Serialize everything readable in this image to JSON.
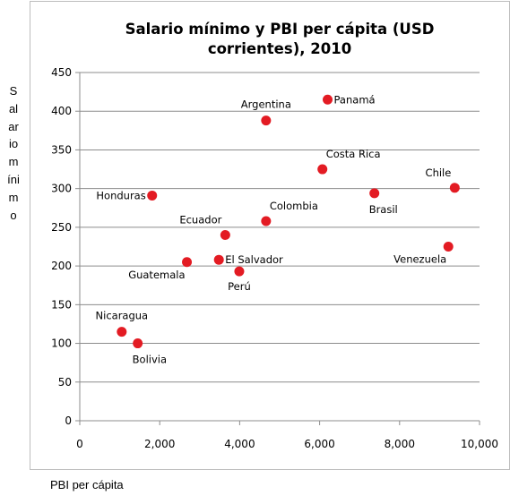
{
  "chart_data": {
    "type": "scatter",
    "title": "Salario mínimo y PBI per cápita (USD corrientes), 2010",
    "title_lines": [
      "Salario mínimo y PBI per cápita (USD",
      "corrientes), 2010"
    ],
    "xlabel": "PBI per cápita",
    "ylabel": "Salario mínimo",
    "xlim": [
      0,
      10000
    ],
    "ylim": [
      0,
      450
    ],
    "x_ticks": [
      0,
      2000,
      4000,
      6000,
      8000,
      10000
    ],
    "x_tick_labels": [
      "0",
      "2,000",
      "4,000",
      "6,000",
      "8,000",
      "10,000"
    ],
    "y_ticks": [
      0,
      50,
      100,
      150,
      200,
      250,
      300,
      350,
      400,
      450
    ],
    "y_tick_labels": [
      "0",
      "50",
      "100",
      "150",
      "200",
      "250",
      "300",
      "350",
      "400",
      "450"
    ],
    "grid": "horizontal",
    "legend": "none",
    "marker_color": "#e31b23",
    "points": [
      {
        "label": "Panamá",
        "x": 6200,
        "y": 415,
        "label_pos": "right"
      },
      {
        "label": "Argentina",
        "x": 4660,
        "y": 388,
        "label_pos": "above"
      },
      {
        "label": "Costa Rica",
        "x": 6070,
        "y": 325,
        "label_pos": "above-right"
      },
      {
        "label": "Chile",
        "x": 9380,
        "y": 301,
        "label_pos": "above-left"
      },
      {
        "label": "Brasil",
        "x": 7370,
        "y": 294,
        "label_pos": "below-right"
      },
      {
        "label": "Honduras",
        "x": 1810,
        "y": 291,
        "label_pos": "left"
      },
      {
        "label": "Colombia",
        "x": 4660,
        "y": 258,
        "label_pos": "above-right"
      },
      {
        "label": "Ecuador",
        "x": 3640,
        "y": 240,
        "label_pos": "above-left"
      },
      {
        "label": "Venezuela",
        "x": 9220,
        "y": 225,
        "label_pos": "below-left"
      },
      {
        "label": "El Salvador",
        "x": 3480,
        "y": 208,
        "label_pos": "right"
      },
      {
        "label": "Guatemala",
        "x": 2680,
        "y": 205,
        "label_pos": "below-left"
      },
      {
        "label": "Perú",
        "x": 3990,
        "y": 193,
        "label_pos": "below"
      },
      {
        "label": "Nicaragua",
        "x": 1050,
        "y": 115,
        "label_pos": "above"
      },
      {
        "label": "Bolivia",
        "x": 1450,
        "y": 100,
        "label_pos": "below-right"
      }
    ]
  }
}
